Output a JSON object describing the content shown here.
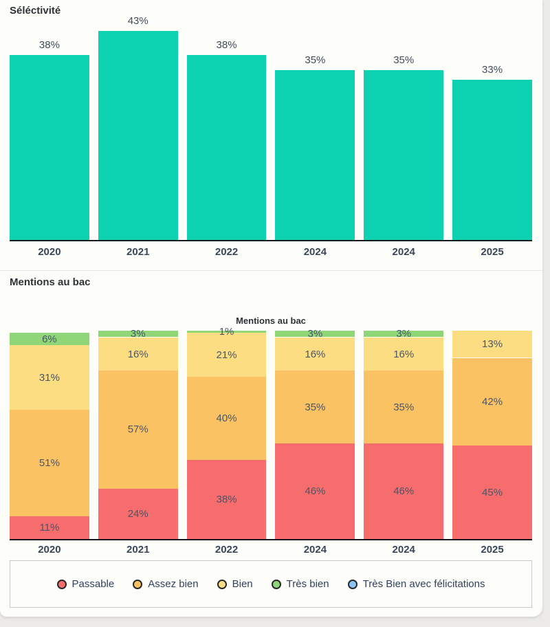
{
  "page": {
    "background_color": "#ebeae7",
    "card_color": "#fdfdfa"
  },
  "selectivity": {
    "section_title": "Séléctivité"
  },
  "mentions": {
    "section_title": "Mentions au bac",
    "chart_title": "Mentions au bac"
  },
  "chart_data": [
    {
      "type": "bar",
      "title": "Séléctivité",
      "categories": [
        "2020",
        "2021",
        "2022",
        "2024",
        "2024",
        "2025"
      ],
      "values": [
        38,
        43,
        38,
        35,
        35,
        33
      ],
      "data_labels": [
        "38%",
        "43%",
        "38%",
        "35%",
        "35%",
        "33%"
      ],
      "unit": "%",
      "bar_color": "#0dd2b2",
      "ylim": [
        0,
        43
      ],
      "grid": false,
      "legend": false
    },
    {
      "type": "stacked-bar",
      "title": "Mentions au bac",
      "categories": [
        "2020",
        "2021",
        "2022",
        "2024",
        "2024",
        "2025"
      ],
      "series": [
        {
          "name": "Passable",
          "color": "#f76d6d",
          "values": [
            11,
            24,
            38,
            46,
            46,
            45
          ]
        },
        {
          "name": "Assez bien",
          "color": "#fbc263",
          "values": [
            51,
            57,
            40,
            35,
            35,
            42
          ]
        },
        {
          "name": "Bien",
          "color": "#fcdd82",
          "values": [
            31,
            16,
            21,
            16,
            16,
            13
          ]
        },
        {
          "name": "Très bien",
          "color": "#8ed677",
          "values": [
            6,
            3,
            1,
            3,
            3,
            0
          ]
        },
        {
          "name": "Très Bien avec félicitations",
          "color": "#8cc5f4",
          "values": [
            0,
            0,
            0,
            0,
            0,
            0
          ]
        }
      ],
      "unit": "%",
      "ylim": [
        0,
        100
      ],
      "grid": false,
      "legend_position": "bottom"
    }
  ],
  "legend": {
    "items": [
      {
        "label": "Passable",
        "color": "#f76d6d"
      },
      {
        "label": "Assez bien",
        "color": "#fbc263"
      },
      {
        "label": "Bien",
        "color": "#fcdd82"
      },
      {
        "label": "Très bien",
        "color": "#8ed677"
      },
      {
        "label": "Très Bien avec félicitations",
        "color": "#8cc5f4"
      }
    ]
  }
}
